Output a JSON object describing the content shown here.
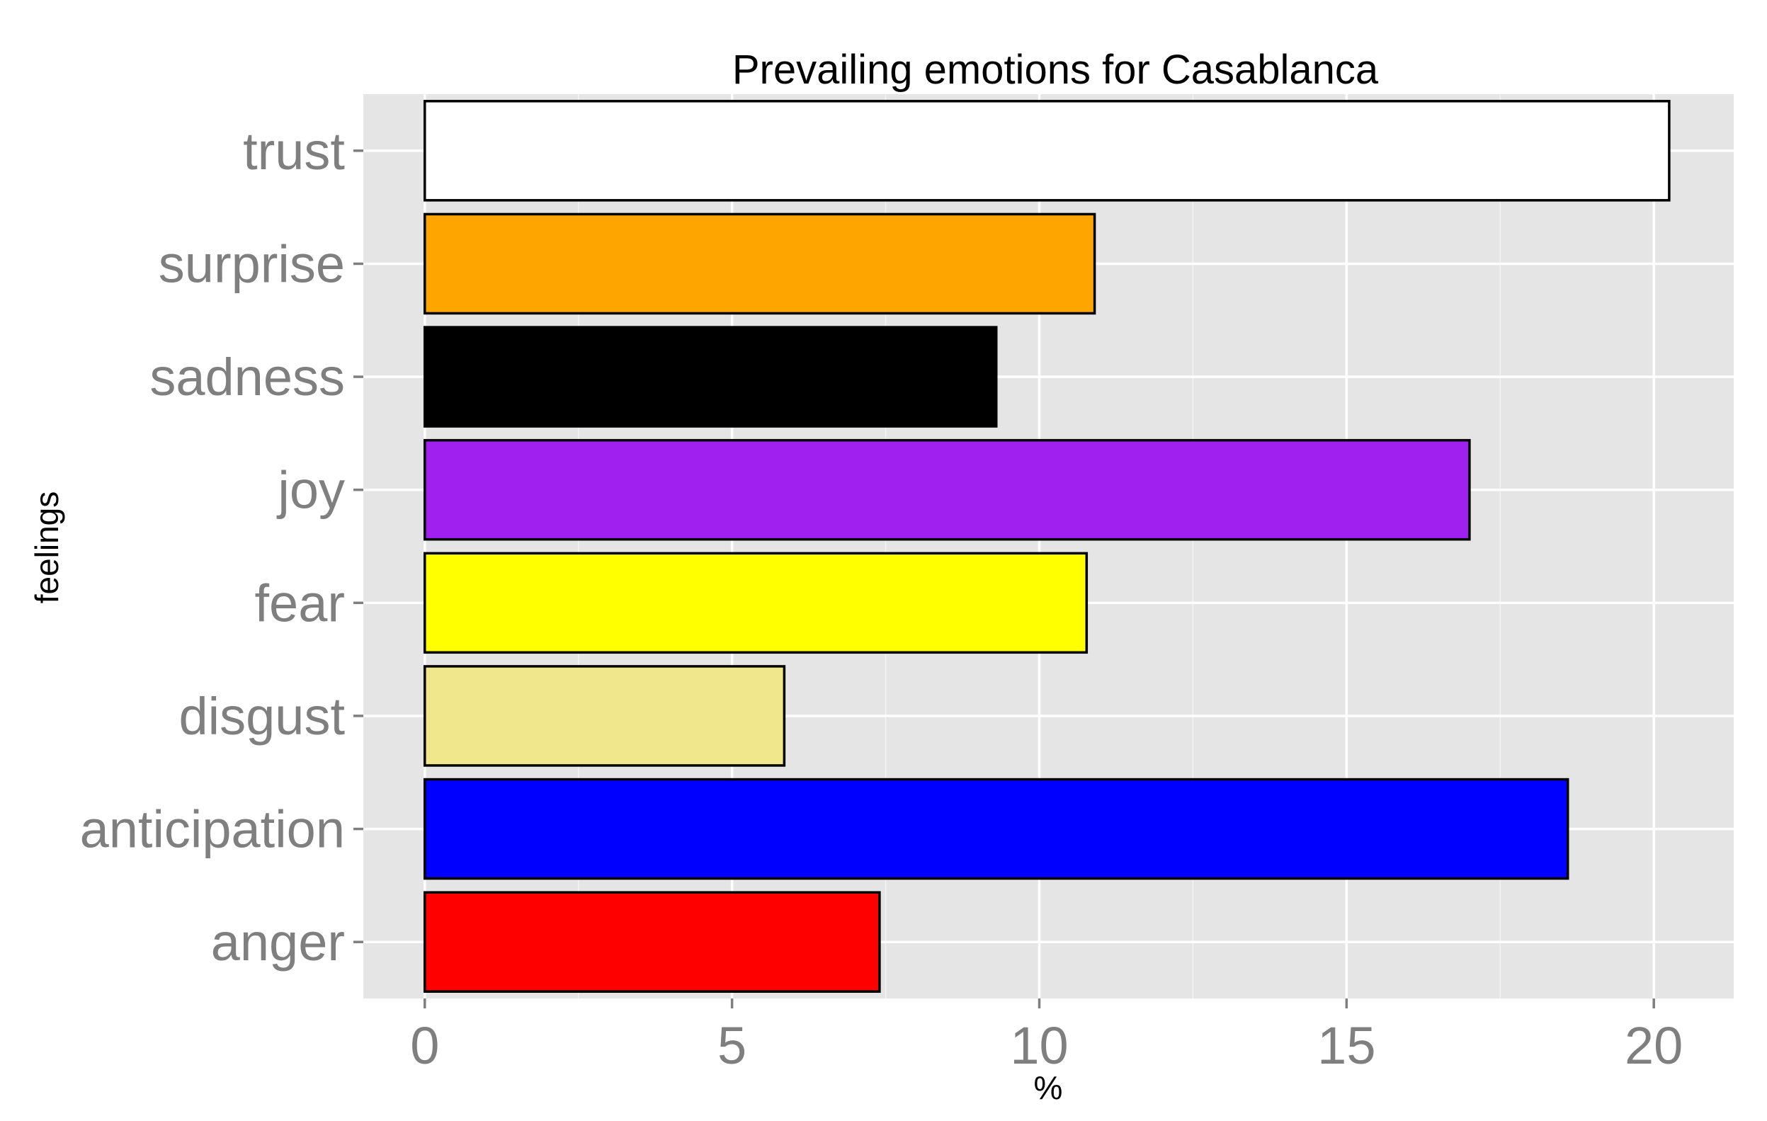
{
  "chart_data": {
    "type": "bar",
    "orientation": "horizontal",
    "title": "Prevailing emotions for Casablanca",
    "xlabel": "%",
    "ylabel": "feelings",
    "categories": [
      "anger",
      "anticipation",
      "disgust",
      "fear",
      "joy",
      "sadness",
      "surprise",
      "trust"
    ],
    "values": [
      7.4,
      18.6,
      5.85,
      10.77,
      17.0,
      9.3,
      10.9,
      20.25
    ],
    "colors": [
      "#FF0000",
      "#0000FF",
      "#F0E68C",
      "#FFFF00",
      "#A020F0",
      "#000000",
      "#FFA500",
      "#FFFFFF"
    ],
    "xlim": [
      -1,
      21.3
    ],
    "xticks": [
      0,
      5,
      10,
      15,
      20
    ],
    "xtick_labels": [
      "0",
      "5",
      "10",
      "15",
      "20"
    ],
    "grid": true,
    "panel_background": "#E5E5E5",
    "grid_color": "#FFFFFF",
    "bar_outline_color": "#000000",
    "legend": "none"
  }
}
